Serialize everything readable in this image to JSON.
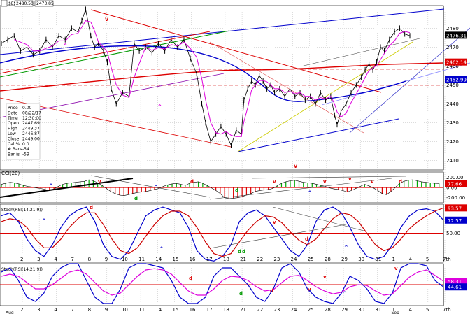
{
  "chart_data": [
    {
      "type": "candlestick",
      "name": "price",
      "header": {
        "symbol": "$ESU7",
        "price_boxes": [
          "2480.50",
          "2473.85"
        ]
      },
      "info_box": [
        {
          "k": "Price",
          "v": "0.00"
        },
        {
          "k": "Date",
          "v": "08/22/17"
        },
        {
          "k": "Time",
          "v": "12:30:00"
        },
        {
          "k": "Open",
          "v": "2447.69"
        },
        {
          "k": "High",
          "v": "2449.37"
        },
        {
          "k": "Low",
          "v": "2446.87"
        },
        {
          "k": "Close",
          "v": "2449.00"
        },
        {
          "k": "Cal %",
          "v": "0.0"
        },
        {
          "k": "# Bars",
          "v": "-54"
        },
        {
          "k": "Bar is",
          "v": "-59"
        }
      ],
      "ylim": [
        2405,
        2492
      ],
      "y_ticks": [
        2410,
        2420,
        2430,
        2440,
        2450,
        2460,
        2470,
        2480
      ],
      "last_values": [
        {
          "label": "2476.31",
          "value": 2476.31,
          "color": "#000000"
        },
        {
          "label": "2462.14",
          "value": 2462.14,
          "color": "#dd0000"
        },
        {
          "label": "2452.99",
          "value": 2452.99,
          "color": "#0000cc"
        }
      ],
      "price_points": [
        [
          0,
          2472
        ],
        [
          0.5,
          2474
        ],
        [
          1,
          2476
        ],
        [
          1.5,
          2468
        ],
        [
          2,
          2470
        ],
        [
          2.5,
          2466
        ],
        [
          3,
          2468
        ],
        [
          3.5,
          2474
        ],
        [
          4,
          2470
        ],
        [
          4.5,
          2476
        ],
        [
          5,
          2474
        ],
        [
          5.5,
          2480
        ],
        [
          6,
          2478
        ],
        [
          6.3,
          2484
        ],
        [
          6.6,
          2490
        ],
        [
          7,
          2476
        ],
        [
          7.3,
          2470
        ],
        [
          7.6,
          2472
        ],
        [
          8,
          2468
        ],
        [
          8.3,
          2462
        ],
        [
          8.6,
          2448
        ],
        [
          9,
          2440
        ],
        [
          9.5,
          2446
        ],
        [
          10,
          2444
        ],
        [
          10.4,
          2472
        ],
        [
          10.8,
          2468
        ],
        [
          11.3,
          2470
        ],
        [
          11.8,
          2467
        ],
        [
          12.3,
          2472
        ],
        [
          12.8,
          2468
        ],
        [
          13.3,
          2474
        ],
        [
          13.8,
          2470
        ],
        [
          14.3,
          2474
        ],
        [
          14.8,
          2464
        ],
        [
          15.3,
          2456
        ],
        [
          15.7,
          2440
        ],
        [
          16,
          2430
        ],
        [
          16.4,
          2420
        ],
        [
          16.8,
          2424
        ],
        [
          17.2,
          2428
        ],
        [
          17.6,
          2424
        ],
        [
          18,
          2418
        ],
        [
          18.4,
          2426
        ],
        [
          18.8,
          2424
        ],
        [
          19,
          2442
        ],
        [
          19.3,
          2448
        ],
        [
          19.6,
          2452
        ],
        [
          19.9,
          2450
        ],
        [
          20.2,
          2455
        ],
        [
          20.5,
          2452
        ],
        [
          20.8,
          2448
        ],
        [
          21.1,
          2450
        ],
        [
          21.4,
          2446
        ],
        [
          21.8,
          2448
        ],
        [
          22.2,
          2444
        ],
        [
          22.6,
          2448
        ],
        [
          23,
          2444
        ],
        [
          23.4,
          2446
        ],
        [
          23.8,
          2442
        ],
        [
          24.2,
          2444
        ],
        [
          24.6,
          2440
        ],
        [
          25,
          2446
        ],
        [
          25.4,
          2442
        ],
        [
          25.8,
          2444
        ],
        [
          26.1,
          2434
        ],
        [
          26.3,
          2429
        ],
        [
          26.6,
          2436
        ],
        [
          27,
          2440
        ],
        [
          27.4,
          2446
        ],
        [
          27.8,
          2450
        ],
        [
          28.2,
          2454
        ],
        [
          28.5,
          2458
        ],
        [
          28.8,
          2461
        ],
        [
          29.1,
          2458
        ],
        [
          29.4,
          2462
        ],
        [
          29.7,
          2470
        ],
        [
          30,
          2468
        ],
        [
          30.4,
          2474
        ],
        [
          30.8,
          2478
        ],
        [
          31.2,
          2480
        ],
        [
          31.6,
          2477
        ],
        [
          32,
          2476
        ]
      ],
      "x_ticks": [
        "2",
        "3",
        "4",
        "7",
        "8",
        "9",
        "10",
        "11",
        "14",
        "15",
        "16",
        "17",
        "18",
        "21",
        "22",
        "23",
        "24",
        "25",
        "28",
        "29",
        "30",
        "31",
        "1",
        "4",
        "5",
        "7th"
      ],
      "x_month_labels": [
        "Aug",
        "Sep"
      ],
      "annotations": [
        "v",
        "^",
        "v",
        "^",
        "v",
        "^"
      ]
    },
    {
      "type": "histogram",
      "name": "CCI",
      "title": "CCI(20)",
      "ylim": [
        -300,
        300
      ],
      "y_ticks": [
        "200.00",
        "0.00",
        "-200.00"
      ],
      "last_values": [
        {
          "label": "77.66",
          "value": 77.66,
          "color": "#dd0000"
        }
      ],
      "values": [
        60,
        80,
        100,
        90,
        70,
        40,
        20,
        10,
        -10,
        -20,
        -40,
        -60,
        -30,
        20,
        60,
        80,
        90,
        100,
        110,
        120,
        150,
        130,
        90,
        40,
        -20,
        -80,
        -120,
        -150,
        -160,
        -140,
        -120,
        -100,
        -90,
        -80,
        -60,
        -40,
        -20,
        20,
        50,
        70,
        80,
        60,
        40,
        80,
        100,
        110,
        80,
        40,
        -10,
        -60,
        -120,
        -200,
        -220,
        -210,
        -200,
        -180,
        -150,
        -120,
        -80,
        -60,
        -50,
        -40,
        -20,
        30,
        80,
        110,
        130,
        140,
        120,
        100,
        90,
        80,
        60,
        40,
        20,
        -10,
        -30,
        -40,
        -60,
        -90,
        -60,
        -20,
        20,
        60,
        30,
        -10,
        -60,
        -120,
        -140,
        -80,
        0,
        80,
        120,
        140,
        150,
        130,
        110,
        100,
        90,
        80,
        77.66
      ],
      "annotations": [
        "v",
        "^",
        "^",
        "d",
        "d",
        "^",
        "v",
        "^",
        "v",
        "v",
        "v",
        "v",
        "d"
      ]
    },
    {
      "type": "line",
      "name": "StochRSI",
      "title": "Stoch(RSI(14,21,9))",
      "ylim": [
        0,
        100
      ],
      "y_ticks": [
        "50.00"
      ],
      "last_values": [
        {
          "label": "93.57",
          "value": 93.57,
          "color": "#dd0000"
        },
        {
          "label": "72.57",
          "value": 72.57,
          "color": "#0000cc"
        }
      ],
      "series": [
        {
          "name": "K",
          "color": "#0000cc",
          "values": [
            80,
            85,
            70,
            40,
            20,
            10,
            30,
            60,
            80,
            90,
            95,
            70,
            30,
            10,
            5,
            20,
            50,
            80,
            90,
            95,
            90,
            85,
            60,
            20,
            5,
            2,
            10,
            30,
            70,
            85,
            90,
            80,
            60,
            40,
            20,
            10,
            30,
            70,
            90,
            95,
            85,
            60,
            30,
            10,
            5,
            10,
            30,
            60,
            80,
            90,
            92,
            88,
            72.57
          ]
        },
        {
          "name": "D",
          "color": "#cc0000",
          "values": [
            70,
            75,
            72,
            60,
            40,
            25,
            25,
            40,
            60,
            75,
            85,
            85,
            65,
            40,
            20,
            15,
            25,
            45,
            65,
            80,
            88,
            88,
            80,
            60,
            35,
            15,
            10,
            15,
            35,
            55,
            70,
            80,
            78,
            68,
            52,
            38,
            30,
            40,
            58,
            75,
            85,
            82,
            70,
            50,
            30,
            20,
            25,
            40,
            58,
            70,
            80,
            88,
            93.57
          ]
        }
      ],
      "annotations": [
        "d",
        "^",
        "^",
        "d",
        "d",
        "v",
        "d",
        "^"
      ]
    },
    {
      "type": "line",
      "name": "StochRSI2",
      "title": "Stoch(RSI(14,21,9))",
      "ylim": [
        0,
        100
      ],
      "last_values": [
        {
          "label": "58.31",
          "value": 58.31,
          "color": "#dd00dd"
        },
        {
          "label": "44.61",
          "value": 44.61,
          "color": "#0000cc"
        }
      ],
      "series": [
        {
          "name": "K",
          "color": "#0000cc",
          "values": [
            80,
            90,
            60,
            20,
            10,
            30,
            70,
            90,
            100,
            100,
            60,
            20,
            5,
            5,
            40,
            90,
            100,
            100,
            95,
            90,
            60,
            20,
            5,
            5,
            20,
            70,
            90,
            90,
            70,
            50,
            20,
            10,
            40,
            90,
            100,
            80,
            40,
            20,
            10,
            5,
            30,
            70,
            60,
            40,
            10,
            5,
            30,
            90,
            100,
            100,
            95,
            60,
            44.61
          ]
        },
        {
          "name": "M",
          "color": "#dd00dd",
          "values": [
            70,
            75,
            70,
            55,
            40,
            40,
            50,
            65,
            80,
            85,
            75,
            55,
            35,
            25,
            30,
            50,
            70,
            85,
            88,
            85,
            75,
            55,
            35,
            25,
            25,
            40,
            60,
            70,
            68,
            60,
            45,
            35,
            38,
            55,
            70,
            72,
            60,
            45,
            35,
            28,
            32,
            45,
            50,
            48,
            35,
            25,
            28,
            48,
            68,
            80,
            85,
            72,
            58.31
          ]
        }
      ],
      "annotations": [
        "d",
        "d",
        "v",
        "v",
        "d",
        "^",
        "^",
        "v"
      ]
    }
  ]
}
